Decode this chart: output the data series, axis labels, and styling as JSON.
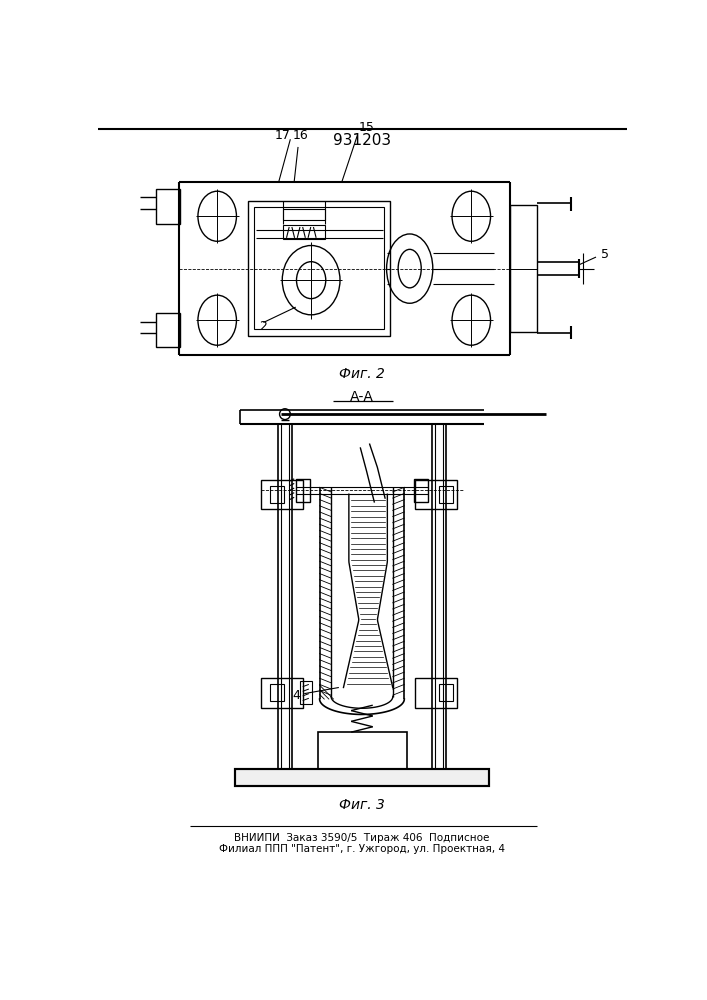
{
  "patent_number": "931203",
  "fig2_caption": "Фиг. 2",
  "fig3_caption": "Фиг. 3",
  "section_label": "А-А",
  "footer_line1": "ВНИИПИ  Заказ 3590/5  Тираж 406  Подписное",
  "footer_line2": "Филиал ППП \"Патент\", г. Ужгород, ул. Проектная, 4",
  "bg_color": "#ffffff",
  "line_color": "#000000",
  "label_2": "2",
  "label_4": "4",
  "label_5": "5",
  "label_15": "15",
  "label_16": "16",
  "label_17": "17"
}
